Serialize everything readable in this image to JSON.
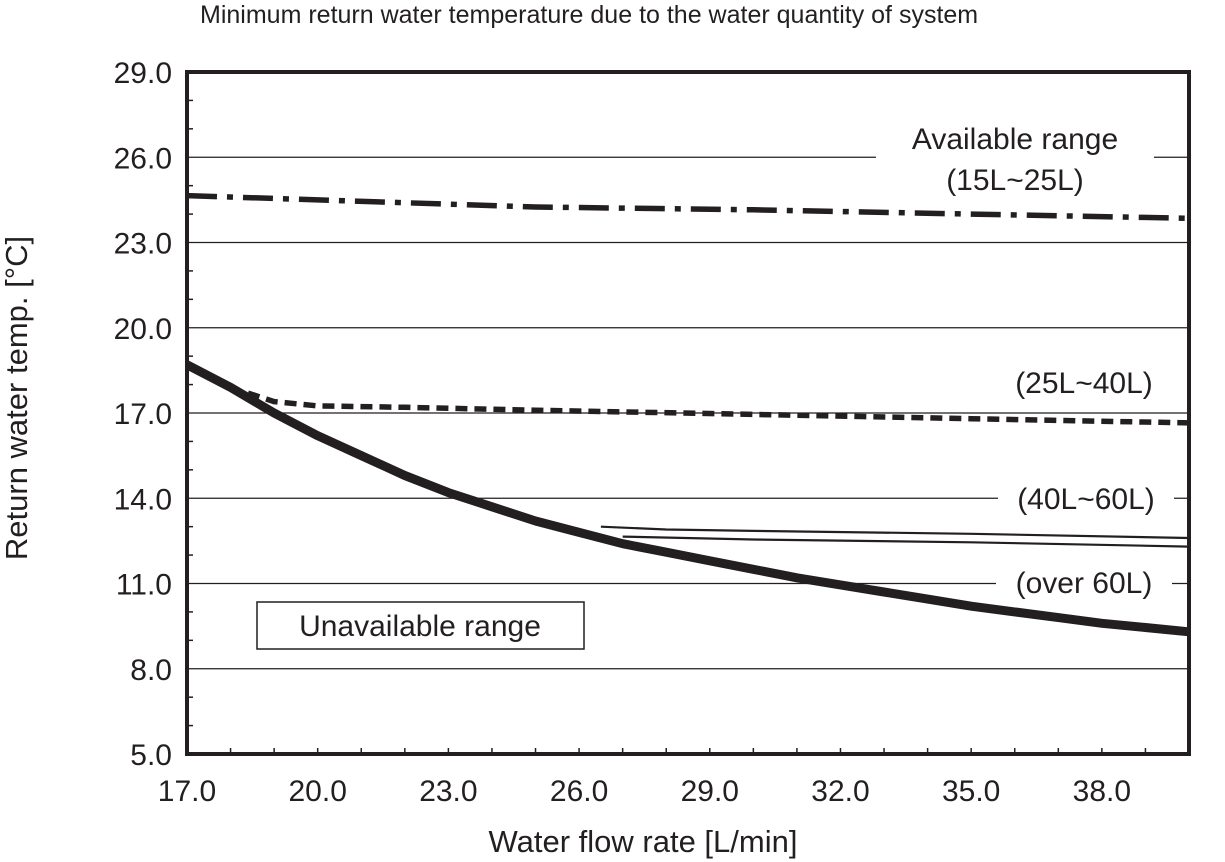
{
  "chart_data": {
    "type": "line",
    "title": "Minimum return water temperature due to the water quantity of system",
    "xlabel": "Water flow rate [L/min]",
    "ylabel": "Return water temp. [°C]",
    "xlim": [
      17.0,
      40.0
    ],
    "ylim": [
      5.0,
      29.0
    ],
    "x_ticks": [
      17.0,
      20.0,
      23.0,
      26.0,
      29.0,
      32.0,
      35.0,
      38.0
    ],
    "x_tick_labels": [
      "17.0",
      "20.0",
      "23.0",
      "26.0",
      "29.0",
      "32.0",
      "35.0",
      "38.0"
    ],
    "y_ticks": [
      5.0,
      8.0,
      11.0,
      14.0,
      17.0,
      20.0,
      23.0,
      26.0,
      29.0
    ],
    "y_tick_labels": [
      "5.0",
      "8.0",
      "11.0",
      "14.0",
      "17.0",
      "20.0",
      "23.0",
      "26.0",
      "29.0"
    ],
    "grid": "horizontal",
    "series": [
      {
        "name": "Unavailable range boundary",
        "style": "thick-solid",
        "x": [
          17.0,
          18.0,
          19.0,
          20.0,
          21.0,
          22.0,
          23.0,
          24.0,
          25.0,
          26.0,
          27.0,
          28.0,
          29.0,
          30.0,
          31.0,
          32.0,
          33.0,
          34.0,
          35.0,
          36.0,
          37.0,
          38.0,
          39.0,
          40.0
        ],
        "values": [
          18.7,
          17.9,
          17.0,
          16.2,
          15.5,
          14.8,
          14.2,
          13.7,
          13.2,
          12.8,
          12.4,
          12.1,
          11.8,
          11.5,
          11.2,
          10.95,
          10.7,
          10.45,
          10.2,
          10.0,
          9.8,
          9.6,
          9.45,
          9.3
        ]
      },
      {
        "name": "(15L~25L)",
        "style": "dash-dot",
        "x": [
          17.0,
          20.0,
          25.0,
          30.0,
          35.0,
          40.0
        ],
        "values": [
          24.65,
          24.5,
          24.25,
          24.15,
          24.0,
          23.85
        ]
      },
      {
        "name": "(25L~40L)",
        "style": "dashed",
        "x": [
          18.4,
          19.0,
          20.0,
          22.0,
          25.0,
          30.0,
          35.0,
          40.0
        ],
        "values": [
          17.7,
          17.4,
          17.25,
          17.2,
          17.1,
          16.95,
          16.8,
          16.65
        ]
      },
      {
        "name": "(40L~60L)",
        "style": "thin-solid",
        "x": [
          26.5,
          28.0,
          30.0,
          35.0,
          40.0
        ],
        "values": [
          13.0,
          12.9,
          12.85,
          12.75,
          12.6
        ]
      },
      {
        "name": "(over 60L)",
        "style": "thin-solid",
        "x": [
          27.0,
          30.0,
          35.0,
          40.0
        ],
        "values": [
          12.65,
          12.55,
          12.45,
          12.3
        ]
      }
    ],
    "annotations": {
      "available_line1": "Available range",
      "available_line2": "(15L~25L)",
      "range_25_40": "(25L~40L)",
      "range_40_60": "(40L~60L)",
      "range_over_60": "(over 60L)",
      "unavailable": "Unavailable range"
    }
  }
}
